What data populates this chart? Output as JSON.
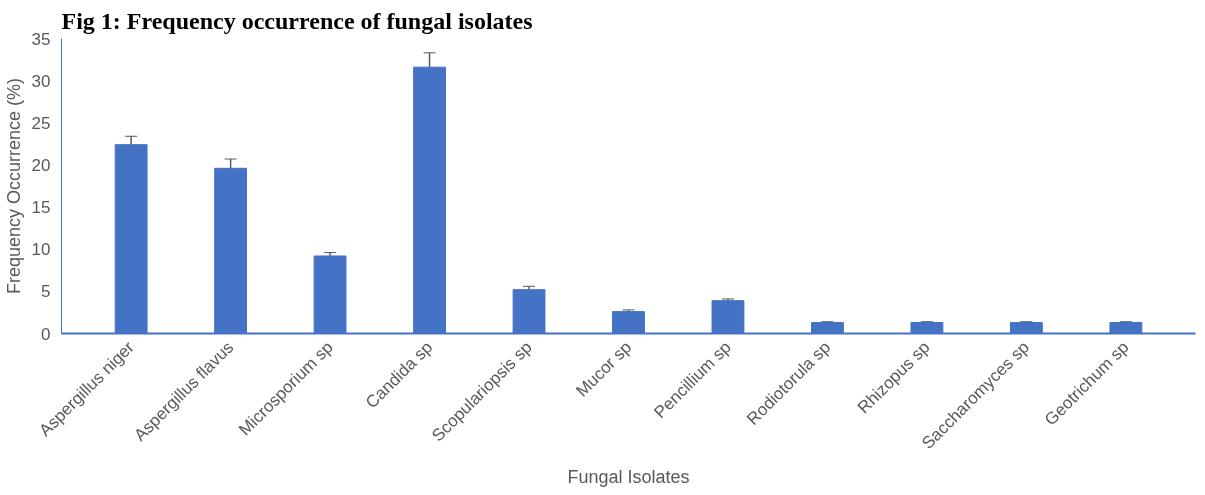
{
  "chart_data": {
    "type": "bar",
    "title": "Fig 1: Frequency occurrence of fungal isolates",
    "xlabel": "Fungal Isolates",
    "ylabel": "Frequency Occurrence (%)",
    "categories": [
      "Aspergillus niger",
      "Aspergillus flavus",
      "Microsporium sp",
      "Candida sp",
      "Scopulariopsis sp",
      "Mucor sp",
      "Pencillium sp",
      "Rodiotorula sp",
      "Rhizopus sp",
      "Saccharomyces sp",
      "Geotrichum sp"
    ],
    "values": [
      22.4,
      19.6,
      9.2,
      31.6,
      5.2,
      2.6,
      3.9,
      1.3,
      1.3,
      1.3,
      1.3
    ],
    "errors": [
      1.0,
      1.1,
      0.4,
      1.7,
      0.4,
      0.2,
      0.2,
      0.1,
      0.1,
      0.1,
      0.1
    ],
    "color": "#4472c4",
    "ylim": [
      0,
      35
    ],
    "yticks": [
      0,
      5,
      10,
      15,
      20,
      25,
      30,
      35
    ],
    "grid": false
  }
}
